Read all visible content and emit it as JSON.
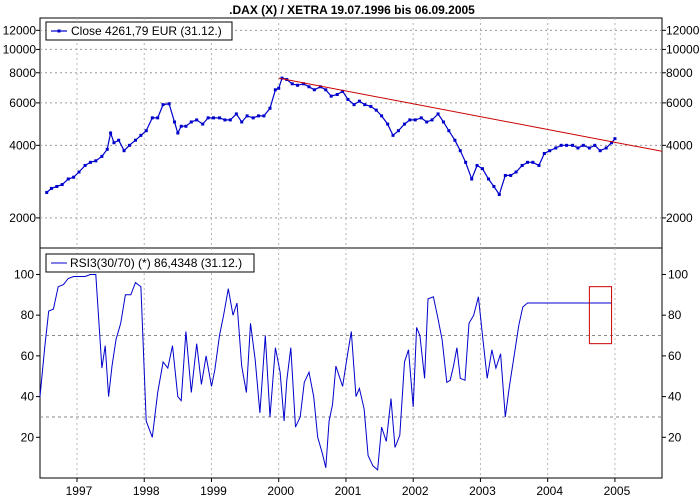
{
  "chart_data": [
    {
      "type": "line",
      "title": ".DAX (X) / XETRA 19.07.1996 bis 06.09.2005",
      "scale": "log",
      "ylim": [
        1500,
        13500
      ],
      "xlim": [
        1996.45,
        2005.7
      ],
      "y_ticks": [
        2000,
        4000,
        6000,
        8000,
        10000,
        12000
      ],
      "y_tick_labels": [
        "2000",
        "4000",
        "6000",
        "8000",
        "10000",
        "12000"
      ],
      "grid": true,
      "legend": "top-left",
      "series": [
        {
          "name": "Close 4261,79 EUR (31.12.)",
          "color": "#0000cc",
          "marker": "square",
          "x": [
            1996.55,
            1996.62,
            1996.7,
            1996.78,
            1996.87,
            1996.95,
            1997.03,
            1997.12,
            1997.2,
            1997.28,
            1997.37,
            1997.45,
            1997.5,
            1997.55,
            1997.62,
            1997.7,
            1997.78,
            1997.87,
            1997.95,
            1998.03,
            1998.12,
            1998.2,
            1998.28,
            1998.37,
            1998.45,
            1998.5,
            1998.55,
            1998.62,
            1998.7,
            1998.78,
            1998.87,
            1998.95,
            1999.03,
            1999.12,
            1999.2,
            1999.28,
            1999.37,
            1999.45,
            1999.53,
            1999.62,
            1999.7,
            1999.78,
            1999.87,
            1999.95,
            2000.0,
            2000.05,
            2000.12,
            2000.2,
            2000.28,
            2000.37,
            2000.45,
            2000.53,
            2000.62,
            2000.7,
            2000.78,
            2000.87,
            2000.95,
            2001.03,
            2001.12,
            2001.2,
            2001.28,
            2001.37,
            2001.45,
            2001.53,
            2001.62,
            2001.7,
            2001.78,
            2001.87,
            2001.95,
            2002.03,
            2002.12,
            2002.2,
            2002.28,
            2002.37,
            2002.45,
            2002.53,
            2002.62,
            2002.7,
            2002.78,
            2002.87,
            2002.95,
            2003.03,
            2003.12,
            2003.2,
            2003.28,
            2003.37,
            2003.45,
            2003.53,
            2003.62,
            2003.7,
            2003.78,
            2003.87,
            2003.95,
            2004.03,
            2004.12,
            2004.2,
            2004.28,
            2004.37,
            2004.45,
            2004.53,
            2004.62,
            2004.7,
            2004.78,
            2004.87,
            2004.95,
            2005.0
          ],
          "values": [
            2550,
            2650,
            2700,
            2750,
            2900,
            2950,
            3100,
            3300,
            3400,
            3450,
            3600,
            3850,
            4500,
            4100,
            4200,
            3800,
            4000,
            4200,
            4400,
            4600,
            5200,
            5200,
            5900,
            5950,
            5000,
            4500,
            4800,
            4800,
            5000,
            5100,
            4900,
            5200,
            5200,
            5200,
            5100,
            5100,
            5400,
            5000,
            5300,
            5200,
            5300,
            5300,
            5700,
            6800,
            6900,
            7600,
            7500,
            7200,
            7100,
            7200,
            7000,
            6800,
            7000,
            6800,
            6400,
            6500,
            6700,
            6200,
            5900,
            6100,
            5900,
            5800,
            5600,
            5300,
            4900,
            4400,
            4600,
            4900,
            5100,
            5100,
            5200,
            5000,
            5100,
            5400,
            5000,
            4600,
            4200,
            3800,
            3400,
            2900,
            3300,
            3200,
            2900,
            2700,
            2500,
            3000,
            3000,
            3100,
            3300,
            3400,
            3400,
            3300,
            3700,
            3800,
            3900,
            4000,
            4000,
            4000,
            3900,
            4000,
            3900,
            4000,
            3800,
            3900,
            4100,
            4262
          ]
        },
        {
          "name": "",
          "color": "#cc0000",
          "marker": "none",
          "x": [
            2000.0,
            2005.7
          ],
          "values": [
            7600,
            3780
          ]
        }
      ]
    },
    {
      "type": "line",
      "title": "",
      "ylim": [
        0,
        113
      ],
      "xlim": [
        1996.45,
        2005.7
      ],
      "y_ticks": [
        20,
        40,
        60,
        80,
        100
      ],
      "y_tick_labels": [
        "20",
        "40",
        "60",
        "80",
        "100"
      ],
      "reference_lines": [
        30,
        70
      ],
      "grid": true,
      "legend": "top-left",
      "x_tick_labels": [
        "1997",
        "1998",
        "1999",
        "2000",
        "2001",
        "2002",
        "2003",
        "2004",
        "2005"
      ],
      "x_ticks": [
        1997.0,
        1998.0,
        1999.0,
        2000.0,
        2001.0,
        2002.0,
        2003.0,
        2004.0,
        2005.0
      ],
      "highlight_box": {
        "x": [
          2004.62,
          2004.95
        ],
        "y": [
          66,
          94
        ],
        "color": "#cc0000"
      },
      "series": [
        {
          "name": "RSI3(30/70) (*) 86,4348 (31.12.)",
          "color": "#0000cc",
          "marker": "none",
          "x": [
            1996.45,
            1996.52,
            1996.58,
            1996.65,
            1996.72,
            1996.8,
            1996.87,
            1996.95,
            1997.03,
            1997.12,
            1997.2,
            1997.28,
            1997.37,
            1997.42,
            1997.47,
            1997.52,
            1997.58,
            1997.65,
            1997.72,
            1997.8,
            1997.87,
            1997.95,
            1998.03,
            1998.12,
            1998.2,
            1998.28,
            1998.35,
            1998.42,
            1998.5,
            1998.55,
            1998.62,
            1998.7,
            1998.78,
            1998.85,
            1998.92,
            1999.0,
            1999.05,
            1999.12,
            1999.18,
            1999.25,
            1999.32,
            1999.38,
            1999.45,
            1999.52,
            1999.58,
            1999.65,
            1999.72,
            1999.8,
            1999.87,
            1999.95,
            2000.02,
            2000.08,
            2000.12,
            2000.18,
            2000.25,
            2000.32,
            2000.38,
            2000.45,
            2000.52,
            2000.58,
            2000.65,
            2000.7,
            2000.75,
            2000.8,
            2000.85,
            2000.9,
            2000.95,
            2001.02,
            2001.08,
            2001.15,
            2001.2,
            2001.27,
            2001.33,
            2001.4,
            2001.47,
            2001.53,
            2001.6,
            2001.67,
            2001.73,
            2001.8,
            2001.87,
            2001.93,
            2002.0,
            2002.05,
            2002.1,
            2002.17,
            2002.22,
            2002.3,
            2002.37,
            2002.43,
            2002.5,
            2002.55,
            2002.6,
            2002.65,
            2002.7,
            2002.77,
            2002.83,
            2002.9,
            2002.97,
            2003.03,
            2003.1,
            2003.17,
            2003.23,
            2003.3,
            2003.37,
            2003.43,
            2003.5,
            2003.57,
            2003.63,
            2003.7,
            2003.77,
            2003.83,
            2003.9,
            2003.97,
            2004.03,
            2004.08,
            2004.13,
            2004.2,
            2004.27,
            2004.33,
            2004.4,
            2004.47,
            2004.53,
            2004.6,
            2004.67,
            2004.73,
            2004.8,
            2004.87,
            2004.95
          ],
          "values": [
            40,
            64,
            82,
            83,
            94,
            95,
            98,
            99,
            99,
            99,
            100,
            100,
            54,
            65,
            40,
            55,
            68,
            76,
            90,
            90,
            96,
            94,
            28,
            20,
            42,
            57,
            54,
            65,
            40,
            38,
            72,
            42,
            66,
            46,
            60,
            45,
            53,
            70,
            80,
            93,
            80,
            86,
            55,
            42,
            76,
            58,
            32,
            70,
            30,
            64,
            52,
            28,
            48,
            64,
            25,
            30,
            47,
            52,
            40,
            20,
            12,
            5,
            28,
            36,
            55,
            50,
            45,
            60,
            72,
            40,
            44,
            34,
            11,
            6,
            4,
            25,
            18,
            39,
            15,
            21,
            57,
            63,
            35,
            74,
            70,
            49,
            88,
            89,
            78,
            68,
            47,
            48,
            55,
            64,
            49,
            48,
            76,
            80,
            89,
            70,
            49,
            63,
            54,
            61,
            30,
            45,
            60,
            75,
            84,
            86,
            86,
            86,
            86,
            86,
            86,
            86,
            86,
            86,
            86,
            86,
            86,
            86,
            86,
            86,
            86,
            86,
            86,
            86,
            86
          ]
        }
      ]
    }
  ]
}
